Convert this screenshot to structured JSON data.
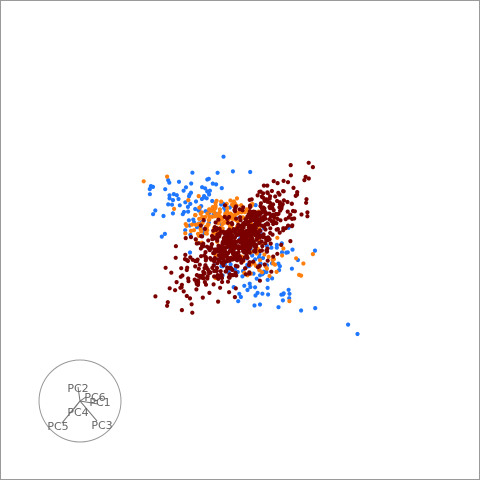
{
  "chart_data": {
    "type": "scatter",
    "title": "",
    "xlabel": "",
    "ylabel": "",
    "grid": false,
    "legend": "none",
    "projection": "tour-2d",
    "x_range": [
      -3,
      3
    ],
    "y_range": [
      -3,
      3
    ],
    "axes_glyph": {
      "position": "bottom-left",
      "labels": [
        "PC1",
        "PC2",
        "PC3",
        "PC4",
        "PC5",
        "PC6"
      ]
    },
    "series": [
      {
        "color": "#1f77ff",
        "clusters": [
          {
            "cx": -0.9,
            "cy": 0.7,
            "sx": 0.55,
            "sy": 0.35,
            "rho": 0.1,
            "n": 90
          },
          {
            "cx": 0.4,
            "cy": -0.5,
            "sx": 0.45,
            "sy": 0.45,
            "rho": -0.2,
            "n": 110
          }
        ],
        "points": [
          [
            2.3,
            -1.8
          ],
          [
            2.5,
            -2.0
          ],
          [
            1.6,
            -1.45
          ],
          [
            -1.85,
            0.55
          ],
          [
            -1.5,
            0.95
          ],
          [
            1.3,
            -1.5
          ]
        ]
      },
      {
        "color": "#ff7f0e",
        "clusters": [
          {
            "cx": -0.45,
            "cy": 0.45,
            "sx": 0.35,
            "sy": 0.2,
            "rho": 0.2,
            "n": 140
          },
          {
            "cx": 0.35,
            "cy": -0.35,
            "sx": 0.35,
            "sy": 0.35,
            "rho": 0.0,
            "n": 50
          }
        ],
        "points": [
          [
            -2.05,
            1.25
          ],
          [
            -1.55,
            1.35
          ],
          [
            1.55,
            -0.3
          ],
          [
            1.35,
            -0.5
          ],
          [
            1.05,
            -1.3
          ],
          [
            -1.1,
            0.85
          ]
        ]
      },
      {
        "color": "#7a0000",
        "clusters": [
          {
            "cx": 0.0,
            "cy": 0.0,
            "sx": 0.75,
            "sy": 0.28,
            "rho": 0.0,
            "rot": 0.72,
            "n": 650
          }
        ],
        "points": [
          [
            1.55,
            1.55
          ],
          [
            -1.55,
            -1.4
          ],
          [
            -1.8,
            -1.2
          ]
        ]
      }
    ]
  }
}
